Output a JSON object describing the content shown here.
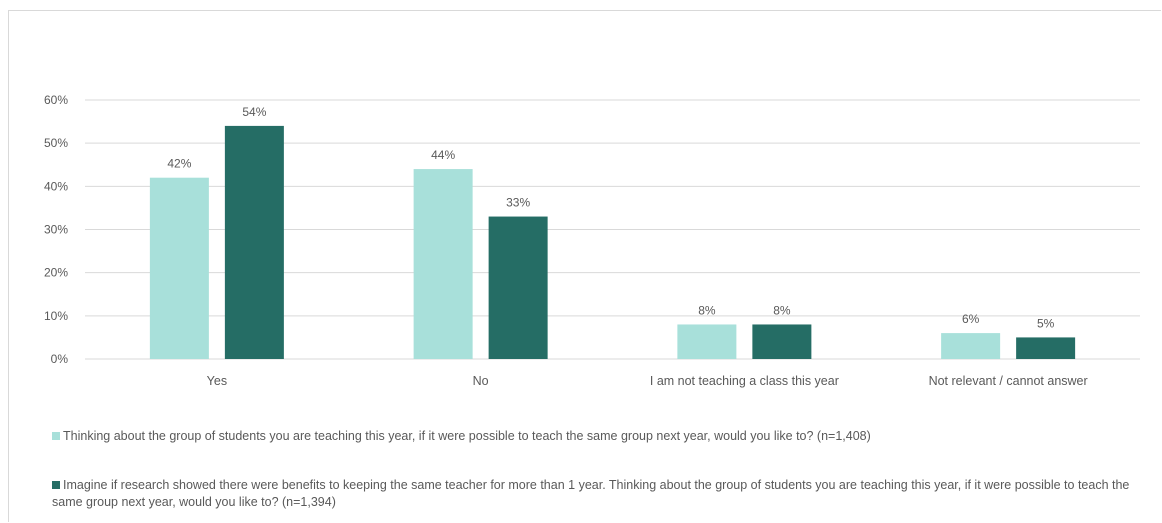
{
  "chart_data": {
    "type": "bar",
    "categories": [
      "Yes",
      "No",
      "I am not teaching a class this year",
      "Not relevant / cannot answer"
    ],
    "series": [
      {
        "name": "Thinking about the group of students you are teaching this year, if it were possible to teach the same group next year, would you like to? (n=1,408)",
        "values": [
          42,
          44,
          8,
          6
        ],
        "labels": [
          "42%",
          "44%",
          "8%",
          "6%"
        ],
        "color": "#a8e0da"
      },
      {
        "name": "Imagine if research showed there were benefits to keeping the same teacher for more than 1 year. Thinking about the group of students you are teaching this year, if it were possible to teach the same group next year, would you like to? (n=1,394)",
        "values": [
          54,
          33,
          8,
          5
        ],
        "labels": [
          "54%",
          "33%",
          "8%",
          "5%"
        ],
        "color": "#256d65"
      }
    ],
    "yticks": [
      "0%",
      "10%",
      "20%",
      "30%",
      "40%",
      "50%",
      "60%"
    ],
    "ylim": [
      0,
      60
    ],
    "grid": true,
    "legend_position": "bottom"
  }
}
